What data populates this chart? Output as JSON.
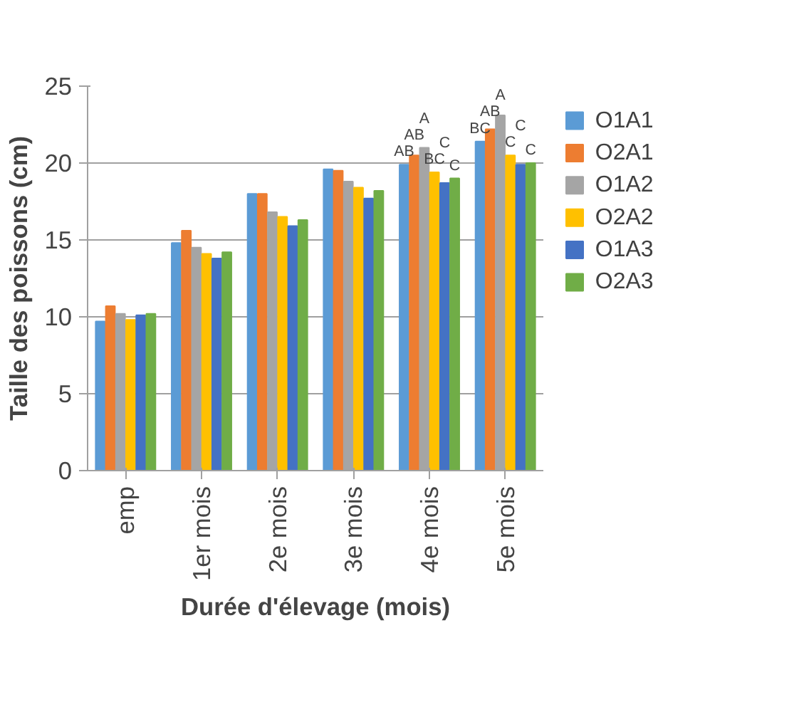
{
  "chart_data": {
    "type": "bar",
    "xlabel": "Durée d'élevage (mois)",
    "ylabel": "Taille des poissons (cm)",
    "categories": [
      "emp",
      "1er mois",
      "2e mois",
      "3e mois",
      "4e mois",
      "5e mois"
    ],
    "series": [
      {
        "name": "O1A1",
        "color": "#5b9bd5",
        "values": [
          9.7,
          14.8,
          18.0,
          19.6,
          19.9,
          21.4
        ]
      },
      {
        "name": "O2A1",
        "color": "#ed7d31",
        "values": [
          10.7,
          15.6,
          18.0,
          19.5,
          20.5,
          22.2
        ]
      },
      {
        "name": "O1A2",
        "color": "#a5a5a5",
        "values": [
          10.2,
          14.5,
          16.8,
          18.8,
          21.0,
          23.1
        ]
      },
      {
        "name": "O2A2",
        "color": "#ffc000",
        "values": [
          9.8,
          14.1,
          16.5,
          18.4,
          19.4,
          20.5
        ]
      },
      {
        "name": "O1A3",
        "color": "#4472c4",
        "values": [
          10.1,
          13.8,
          15.9,
          17.7,
          18.7,
          19.9
        ]
      },
      {
        "name": "O2A3",
        "color": "#70ad47",
        "values": [
          10.2,
          14.2,
          16.3,
          18.2,
          19.0,
          20.0
        ]
      }
    ],
    "annotations": [
      {
        "text": "AB",
        "x": "4e mois",
        "y": 19.9
      },
      {
        "text": "AB",
        "x": "4e mois",
        "y": 20.5
      },
      {
        "text": "A",
        "x": "4e mois",
        "y": 21.0
      },
      {
        "text": "BC",
        "x": "4e mois",
        "y": 19.4
      },
      {
        "text": "C",
        "x": "4e mois",
        "y": 18.7
      },
      {
        "text": "C",
        "x": "4e mois",
        "y": 19.0
      },
      {
        "text": "BC",
        "x": "5e mois",
        "y": 21.4
      },
      {
        "text": "AB",
        "x": "5e mois",
        "y": 22.2
      },
      {
        "text": "A",
        "x": "5e mois",
        "y": 23.1
      },
      {
        "text": "C",
        "x": "5e mois",
        "y": 20.5
      },
      {
        "text": "C",
        "x": "5e mois",
        "y": 19.9
      },
      {
        "text": "C",
        "x": "5e mois",
        "y": 20.0
      }
    ],
    "ylim": [
      0,
      25
    ],
    "yticks": [
      0,
      5,
      10,
      15,
      20,
      25
    ],
    "grid": "y",
    "legend": "right"
  }
}
